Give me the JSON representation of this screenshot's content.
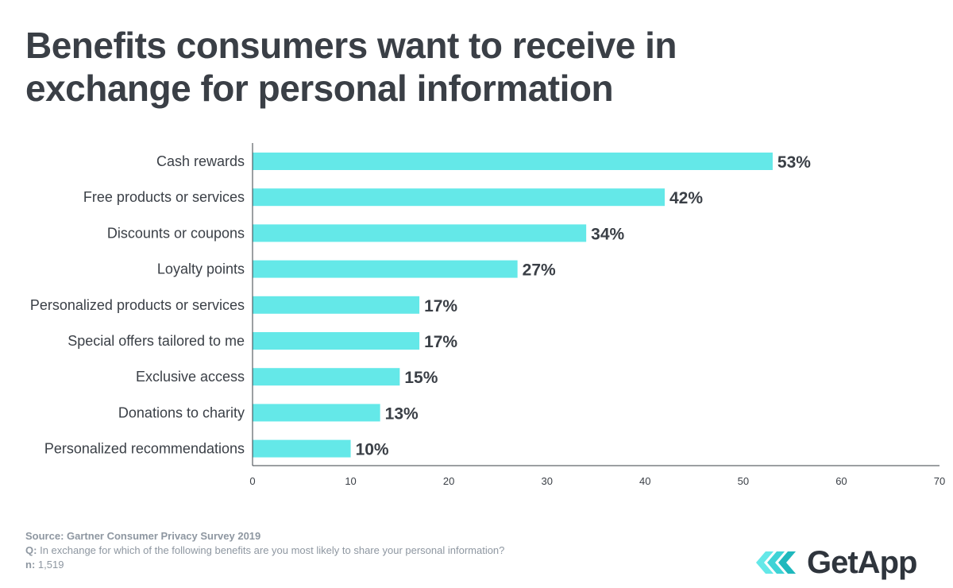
{
  "chart_data": {
    "type": "bar",
    "orientation": "horizontal",
    "title": "Benefits consumers want to receive in exchange for personal information",
    "categories": [
      "Cash rewards",
      "Free products or services",
      "Discounts or coupons",
      "Loyalty points",
      "Personalized products or services",
      "Special offers tailored to me",
      "Exclusive access",
      "Donations to charity",
      "Personalized recommendations"
    ],
    "values": [
      53,
      42,
      34,
      27,
      17,
      17,
      15,
      13,
      10
    ],
    "value_labels": [
      "53%",
      "42%",
      "34%",
      "27%",
      "17%",
      "17%",
      "15%",
      "13%",
      "10%"
    ],
    "xlim": [
      0,
      70
    ],
    "xticks": [
      0,
      10,
      20,
      30,
      40,
      50,
      60,
      70
    ],
    "xlabel": "",
    "ylabel": "",
    "grid": false,
    "bar_color": "#64e8e8"
  },
  "footer": {
    "source_label": "Source:",
    "source_text": "Gartner Consumer Privacy Survey 2019",
    "q_label": "Q:",
    "q_text": "In exchange for which of the following benefits are you most likely to share your personal information?",
    "n_label": "n:",
    "n_text": "1,519"
  },
  "logo": {
    "text": "GetApp",
    "icon": "getapp-chevrons-icon",
    "color": "#64e8e8"
  }
}
